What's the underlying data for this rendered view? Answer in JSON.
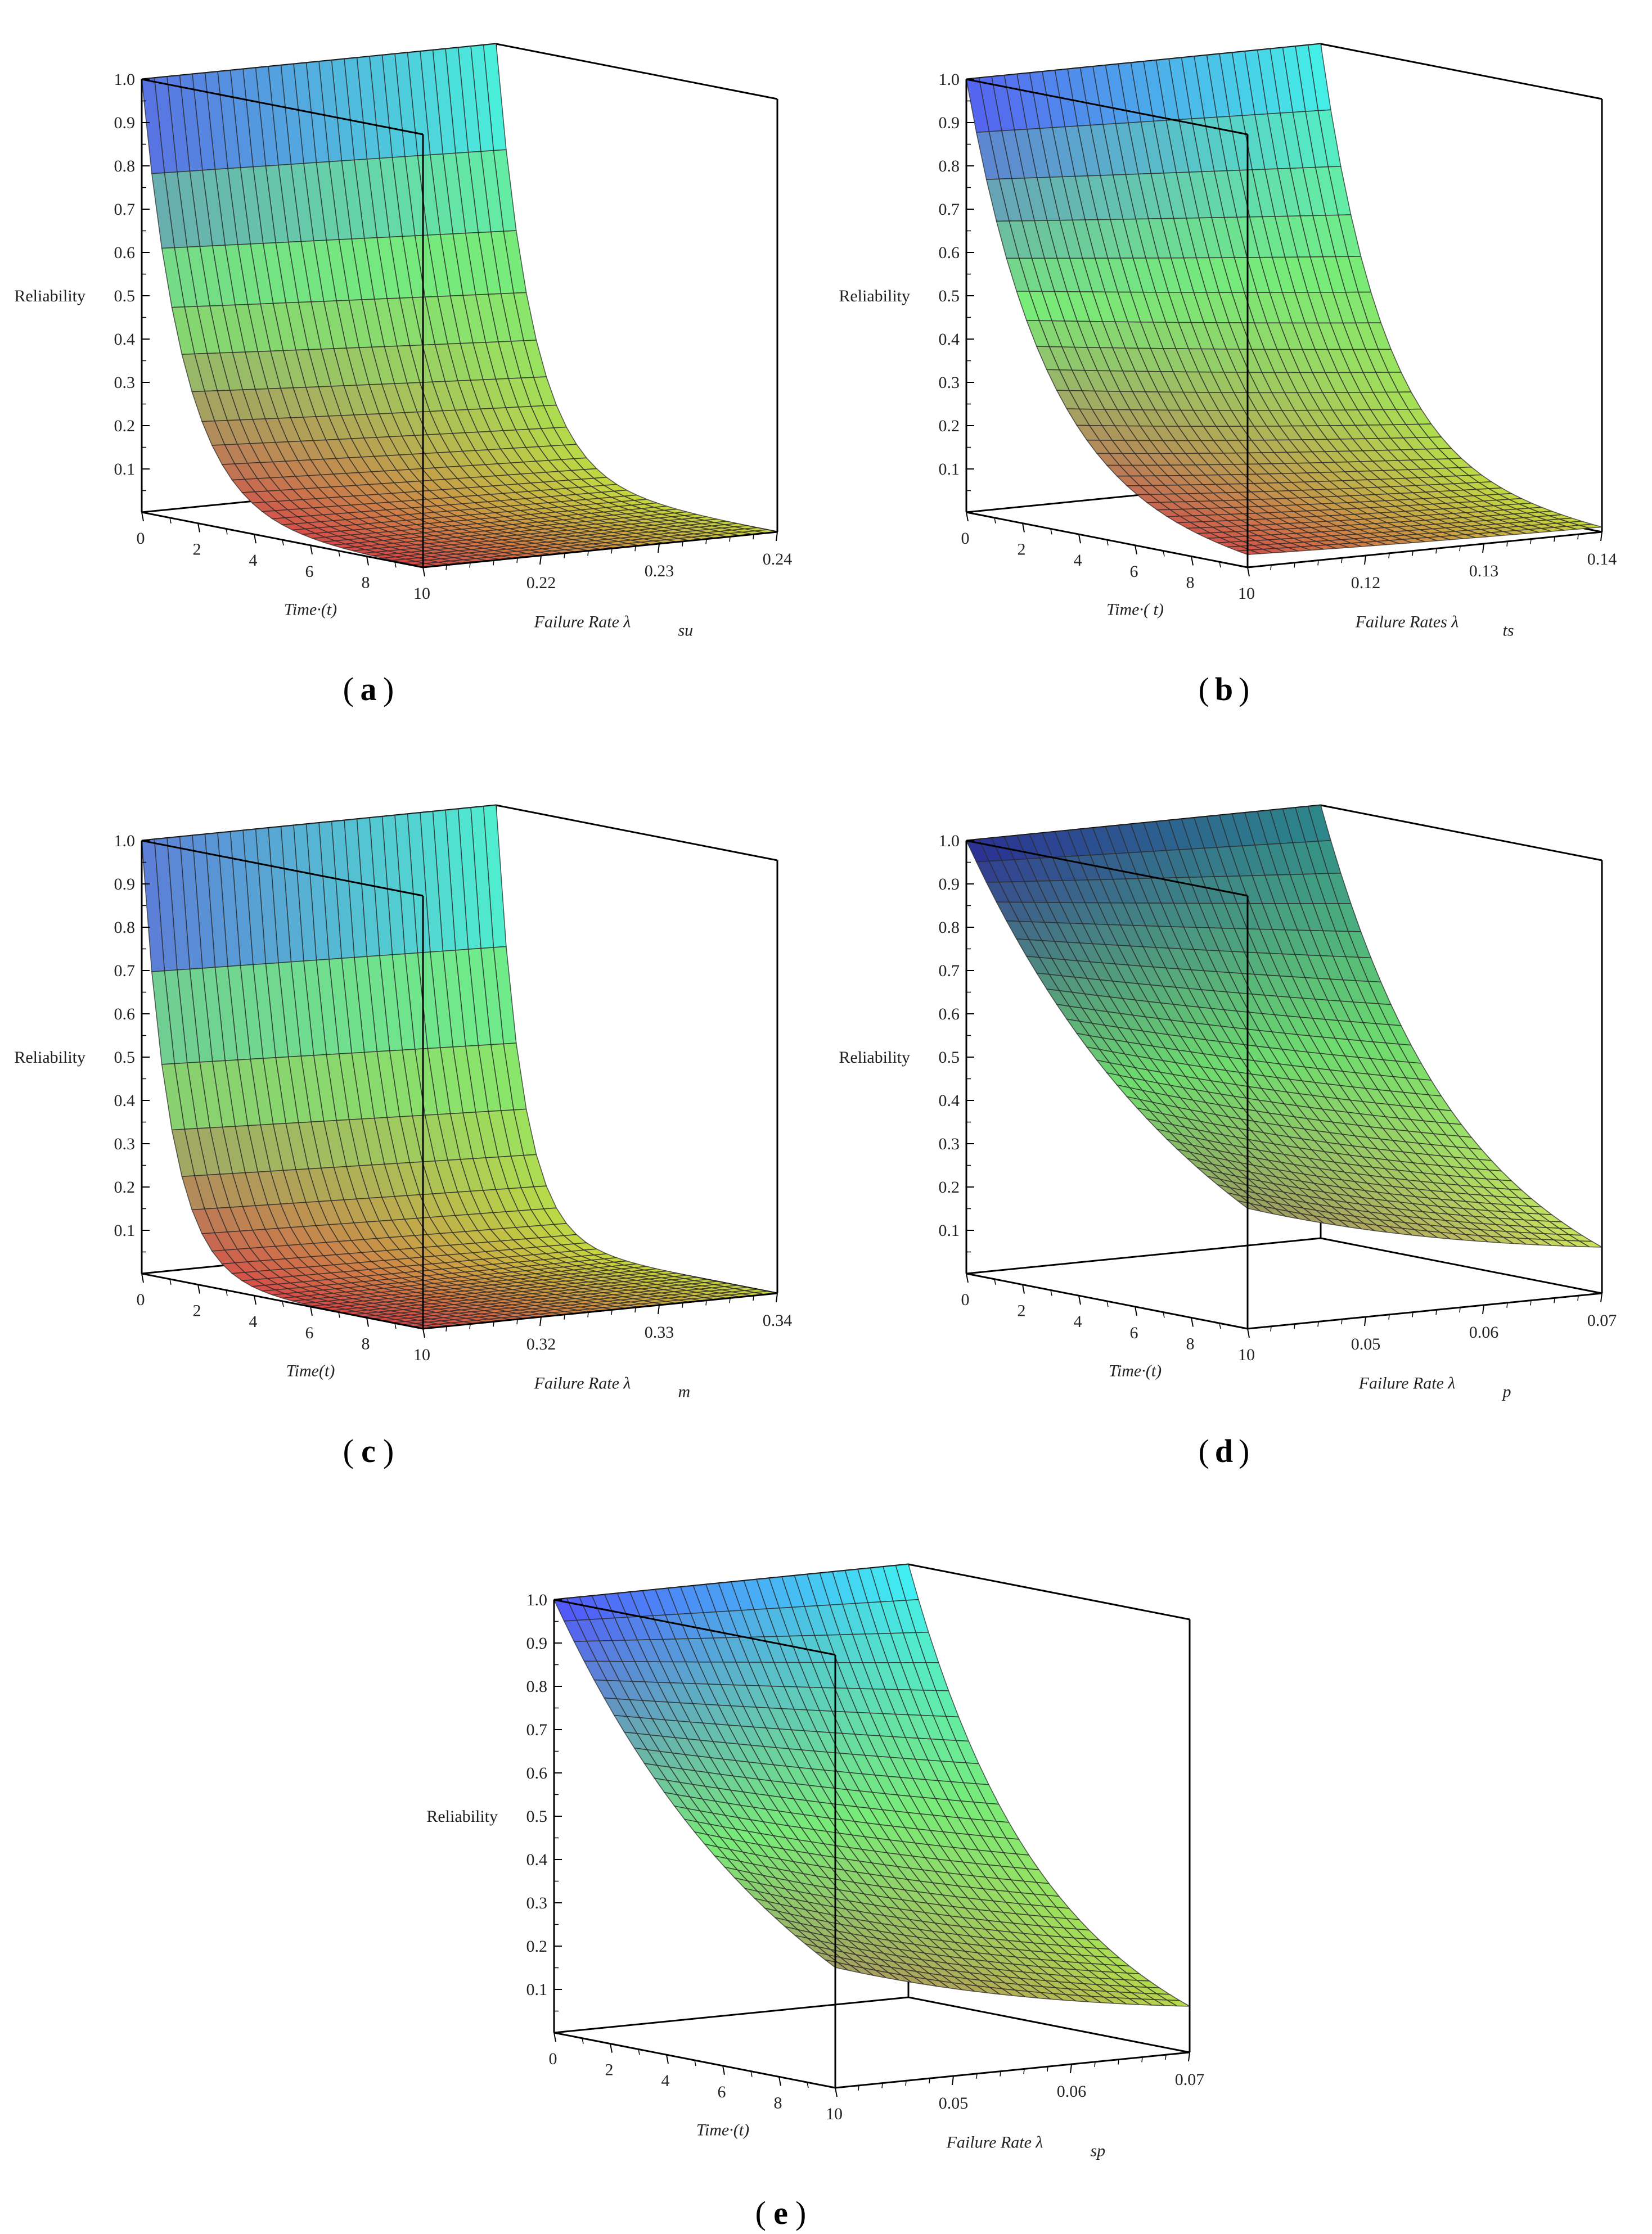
{
  "figure": {
    "title": ""
  },
  "chart_data": [
    {
      "type": "surface3d",
      "panel": "(a)",
      "caption_label": "a",
      "function": "Reliability = exp(-lambda * t)",
      "zlabel": "Reliability",
      "xlabel": "Time·(t)",
      "ylabel": "Failure Rate λ",
      "ylabel_sub": "su",
      "x_range": [
        0,
        10
      ],
      "x_ticks": [
        "0",
        "2",
        "4",
        "6",
        "8",
        "10"
      ],
      "y_range": [
        0.21,
        0.24
      ],
      "y_ticks": [
        "0.22",
        "0.23",
        "0.24"
      ],
      "z_range": [
        0,
        1
      ],
      "z_ticks": [
        "0.1",
        "0.2",
        "0.3",
        "0.4",
        "0.5",
        "0.6",
        "0.7",
        "0.8",
        "0.9",
        "1.0"
      ],
      "colormap": "bright"
    },
    {
      "type": "surface3d",
      "panel": "(b)",
      "caption_label": "b",
      "function": "Reliability = exp(-lambda * t)",
      "zlabel": "Reliability",
      "xlabel": "Time·( t)",
      "ylabel": "Failure Rates λ",
      "ylabel_sub": "ts",
      "x_range": [
        0,
        10
      ],
      "x_ticks": [
        "0",
        "2",
        "4",
        "6",
        "8",
        "10"
      ],
      "y_range": [
        0.11,
        0.14
      ],
      "y_ticks": [
        "0.12",
        "0.13",
        "0.14"
      ],
      "z_range": [
        0,
        1
      ],
      "z_ticks": [
        "0.1",
        "0.2",
        "0.3",
        "0.4",
        "0.5",
        "0.6",
        "0.7",
        "0.8",
        "0.9",
        "1.0"
      ],
      "colormap": "bright"
    },
    {
      "type": "surface3d",
      "panel": "(c)",
      "caption_label": "c",
      "function": "Reliability = exp(-lambda * t)",
      "zlabel": "Reliability",
      "xlabel": "Time(t)",
      "ylabel": "Failure Rate λ",
      "ylabel_sub": "m",
      "x_range": [
        0,
        10
      ],
      "x_ticks": [
        "0",
        "2",
        "4",
        "6",
        "8",
        "10"
      ],
      "y_range": [
        0.31,
        0.34
      ],
      "y_ticks": [
        "0.32",
        "0.33",
        "0.34"
      ],
      "z_range": [
        0,
        1
      ],
      "z_ticks": [
        "0.1",
        "0.2",
        "0.3",
        "0.4",
        "0.5",
        "0.6",
        "0.7",
        "0.8",
        "0.9",
        "1.0"
      ],
      "colormap": "bright"
    },
    {
      "type": "surface3d",
      "panel": "(d)",
      "caption_label": "d",
      "function": "Reliability = exp(-lambda * t)",
      "zlabel": "Reliability",
      "xlabel": "Time·(t)",
      "ylabel": "Failure Rate λ",
      "ylabel_sub": "p",
      "x_range": [
        0,
        10
      ],
      "x_ticks": [
        "0",
        "2",
        "4",
        "6",
        "8",
        "10"
      ],
      "y_range": [
        0.04,
        0.07
      ],
      "y_ticks": [
        "0.05",
        "0.06",
        "0.07"
      ],
      "z_range": [
        0,
        1
      ],
      "z_ticks": [
        "0.1",
        "0.2",
        "0.3",
        "0.4",
        "0.5",
        "0.6",
        "0.7",
        "0.8",
        "0.9",
        "1.0"
      ],
      "colormap": "dark"
    },
    {
      "type": "surface3d",
      "panel": "(e)",
      "caption_label": "e",
      "function": "Reliability = exp(-lambda * t)",
      "zlabel": "Reliability",
      "xlabel": "Time·(t)",
      "ylabel": "Failure Rate λ",
      "ylabel_sub": "sp",
      "x_range": [
        0,
        10
      ],
      "x_ticks": [
        "0",
        "2",
        "4",
        "6",
        "8",
        "10"
      ],
      "y_range": [
        0.04,
        0.07
      ],
      "y_ticks": [
        "0.05",
        "0.06",
        "0.07"
      ],
      "z_range": [
        0,
        1
      ],
      "z_ticks": [
        "0.1",
        "0.2",
        "0.3",
        "0.4",
        "0.5",
        "0.6",
        "0.7",
        "0.8",
        "0.9",
        "1.0"
      ],
      "colormap": "bright"
    }
  ]
}
